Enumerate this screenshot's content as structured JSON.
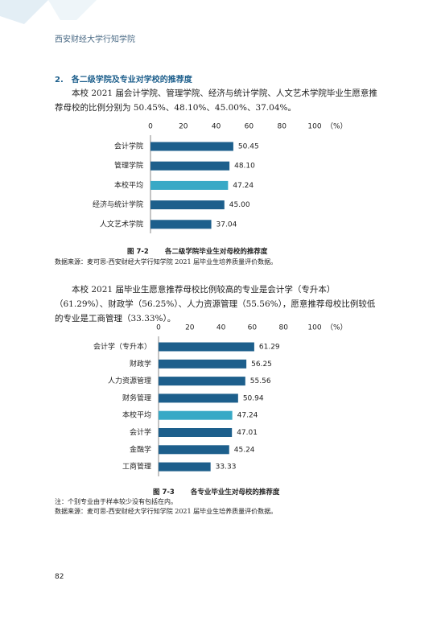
{
  "header": {
    "title": "西安财经大学行知学院"
  },
  "section_title": "2.　各二级学院及专业对学校的推荐度",
  "paragraph_1": "本校 2021 届会计学院、管理学院、经济与统计学院、人文艺术学院毕业生愿意推荐母校的比例分别为 50.45%、48.10%、45.00%、37.04%。",
  "paragraph_2": "本校 2021 届毕业生愿意推荐母校比例较高的专业是会计学（专升本）（61.29%）、财政学（56.25%）、人力资源管理（55.56%），愿意推荐母校比例较低的专业是工商管理（33.33%）。",
  "chart_data": [
    {
      "type": "bar",
      "orientation": "horizontal",
      "categories": [
        "会计学院",
        "管理学院",
        "本校平均",
        "经济与统计学院",
        "人文艺术学院"
      ],
      "values": [
        50.45,
        48.1,
        47.24,
        45,
        37.04
      ],
      "value_labels": [
        "50.45",
        "48.10",
        "47.24",
        "45.00",
        "37.04"
      ],
      "colors": [
        "#1d5f8c",
        "#1d5f8c",
        "#38a9c6",
        "#1d5f8c",
        "#1d5f8c"
      ],
      "xlim": [
        0,
        100
      ],
      "xticks": [
        0,
        20,
        40,
        60,
        80,
        100
      ],
      "x_unit": "（%）",
      "caption_label": "图 7-2",
      "title": "各二级学院毕业生对母校的推荐度",
      "source": "数据来源：麦可思-西安财经大学行知学院 2021 届毕业生培养质量评价数据。"
    },
    {
      "type": "bar",
      "orientation": "horizontal",
      "categories": [
        "会计学（专升本）",
        "财政学",
        "人力资源管理",
        "财务管理",
        "本校平均",
        "会计学",
        "金融学",
        "工商管理"
      ],
      "values": [
        61.29,
        56.25,
        55.56,
        50.94,
        47.24,
        47.01,
        45.24,
        33.33
      ],
      "value_labels": [
        "61.29",
        "56.25",
        "55.56",
        "50.94",
        "47.24",
        "47.01",
        "45.24",
        "33.33"
      ],
      "colors": [
        "#1d5f8c",
        "#1d5f8c",
        "#1d5f8c",
        "#1d5f8c",
        "#38a9c6",
        "#1d5f8c",
        "#1d5f8c",
        "#1d5f8c"
      ],
      "xlim": [
        0,
        100
      ],
      "xticks": [
        0,
        20,
        40,
        60,
        80,
        100
      ],
      "x_unit": "（%）",
      "caption_label": "图 7-3",
      "title": "各专业毕业生对母校的推荐度",
      "note": "注：个别专业由于样本较少没有包括在内。",
      "source": "数据来源：麦可思-西安财经大学行知学院 2021 届毕业生培养质量评价数据。"
    }
  ],
  "page_number": "82"
}
